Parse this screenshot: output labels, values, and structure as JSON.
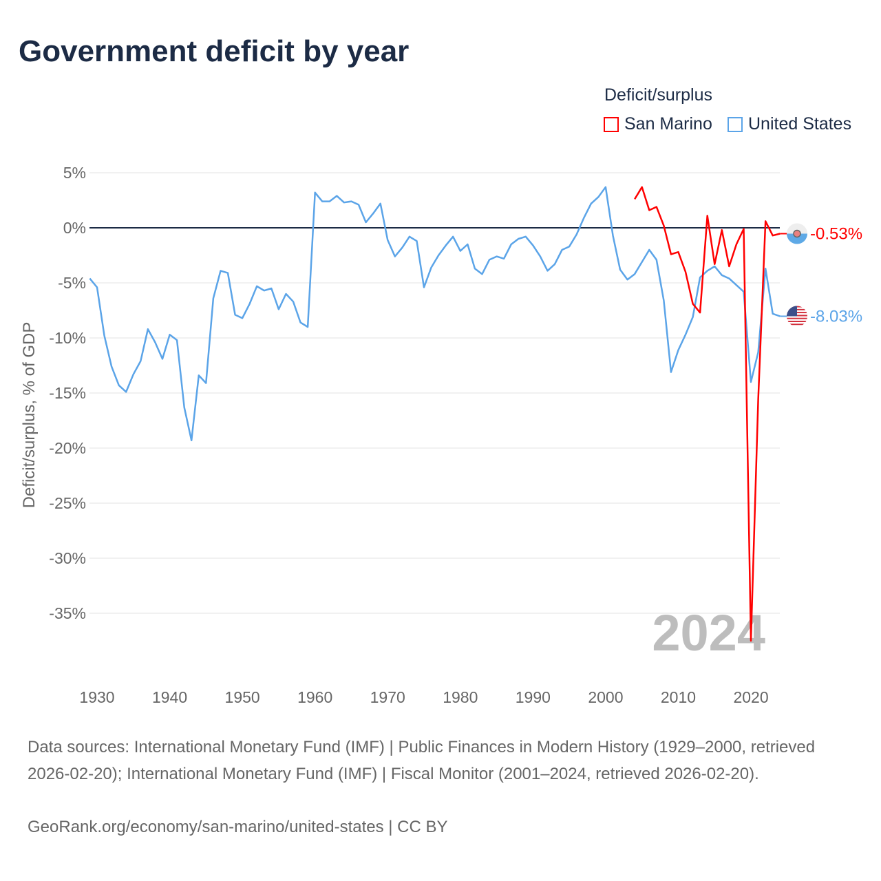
{
  "chart_data": {
    "type": "line",
    "title": "Government deficit by year",
    "ylabel": "Deficit/surplus, % of GDP",
    "xlabel": "",
    "legend_title": "Deficit/surplus",
    "legend_position": "top-right",
    "ylim": [
      -38.5,
      6
    ],
    "xlim": [
      1929,
      2024
    ],
    "y_ticks": [
      5,
      0,
      -5,
      -10,
      -15,
      -20,
      -25,
      -30,
      -35
    ],
    "y_tick_labels": [
      "5%",
      "0%",
      "-5%",
      "-10%",
      "-15%",
      "-20%",
      "-25%",
      "-30%",
      "-35%"
    ],
    "x_ticks": [
      1930,
      1940,
      1950,
      1960,
      1970,
      1980,
      1990,
      2000,
      2010,
      2020
    ],
    "x_tick_labels": [
      "1930",
      "1940",
      "1950",
      "1960",
      "1970",
      "1980",
      "1990",
      "2000",
      "2010",
      "2020"
    ],
    "grid": true,
    "year_watermark": "2024",
    "series": [
      {
        "name": "San Marino",
        "color": "#ff0000",
        "flag": "san-marino-flag",
        "end_label": "-0.53%",
        "x": [
          2004,
          2005,
          2006,
          2007,
          2008,
          2009,
          2010,
          2011,
          2012,
          2013,
          2014,
          2015,
          2016,
          2017,
          2018,
          2019,
          2020,
          2021,
          2022,
          2023,
          2024
        ],
        "values": [
          2.6,
          3.7,
          1.6,
          1.9,
          0.2,
          -2.4,
          -2.2,
          -4.0,
          -6.9,
          -7.7,
          1.1,
          -3.3,
          -0.2,
          -3.5,
          -1.5,
          -0.1,
          -37.5,
          -15.6,
          0.6,
          -0.7,
          -0.53
        ]
      },
      {
        "name": "United States",
        "color": "#5ba4e8",
        "flag": "united-states-flag",
        "end_label": "-8.03%",
        "x": [
          1929,
          1930,
          1931,
          1932,
          1933,
          1934,
          1935,
          1936,
          1937,
          1938,
          1939,
          1940,
          1941,
          1942,
          1943,
          1944,
          1945,
          1946,
          1947,
          1948,
          1949,
          1950,
          1951,
          1952,
          1953,
          1954,
          1955,
          1956,
          1957,
          1958,
          1959,
          1960,
          1961,
          1962,
          1963,
          1964,
          1965,
          1966,
          1967,
          1968,
          1969,
          1970,
          1971,
          1972,
          1973,
          1974,
          1975,
          1976,
          1977,
          1978,
          1979,
          1980,
          1981,
          1982,
          1983,
          1984,
          1985,
          1986,
          1987,
          1988,
          1989,
          1990,
          1991,
          1992,
          1993,
          1994,
          1995,
          1996,
          1997,
          1998,
          1999,
          2000,
          2001,
          2002,
          2003,
          2004,
          2005,
          2006,
          2007,
          2008,
          2009,
          2010,
          2011,
          2012,
          2013,
          2014,
          2015,
          2016,
          2017,
          2018,
          2019,
          2020,
          2021,
          2022,
          2023,
          2024
        ],
        "values": [
          -4.6,
          -5.4,
          -9.8,
          -12.6,
          -14.3,
          -14.9,
          -13.3,
          -12.1,
          -9.2,
          -10.4,
          -11.9,
          -9.7,
          -10.2,
          -16.3,
          -19.3,
          -13.4,
          -14.1,
          -6.4,
          -3.9,
          -4.1,
          -7.9,
          -8.2,
          -6.9,
          -5.3,
          -5.7,
          -5.5,
          -7.4,
          -6.0,
          -6.7,
          -8.6,
          -9.0,
          3.2,
          2.4,
          2.4,
          2.9,
          2.3,
          2.4,
          2.1,
          0.5,
          1.3,
          2.2,
          -1.1,
          -2.6,
          -1.8,
          -0.8,
          -1.2,
          -5.4,
          -3.6,
          -2.5,
          -1.6,
          -0.8,
          -2.1,
          -1.5,
          -3.7,
          -4.2,
          -2.9,
          -2.6,
          -2.8,
          -1.5,
          -1.0,
          -0.8,
          -1.6,
          -2.6,
          -3.9,
          -3.3,
          -2.0,
          -1.7,
          -0.6,
          0.9,
          2.2,
          2.8,
          3.7,
          -0.7,
          -3.8,
          -4.7,
          -4.2,
          -3.1,
          -2.0,
          -2.9,
          -6.6,
          -13.1,
          -11.1,
          -9.7,
          -8.1,
          -4.5,
          -3.9,
          -3.5,
          -4.3,
          -4.6,
          -5.2,
          -5.8,
          -14.0,
          -11.3,
          -3.7,
          -7.8,
          -8.03
        ]
      }
    ]
  },
  "footer": {
    "sources": "Data sources: International Monetary Fund (IMF) | Public Finances in Modern History (1929–2000, retrieved 2026-02-20); International Monetary Fund (IMF) | Fiscal Monitor (2001–2024, retrieved 2026-02-20).",
    "credit": "GeoRank.org/economy/san-marino/united-states | CC BY"
  }
}
